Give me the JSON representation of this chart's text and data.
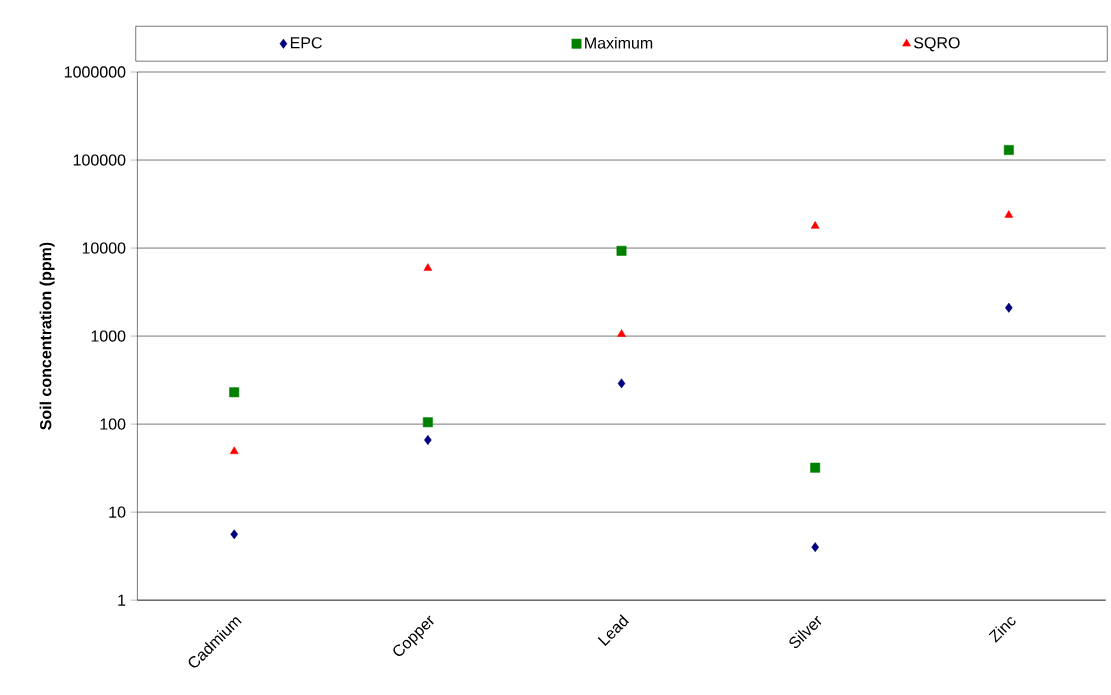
{
  "chart_data": {
    "type": "scatter",
    "ylabel": "Soil concentration (ppm)",
    "categories": [
      "Cadmium",
      "Copper",
      "Lead",
      "Silver",
      "Zinc"
    ],
    "series": [
      {
        "name": "EPC",
        "color": "#000080",
        "marker": "diamond",
        "values": [
          5.6,
          66,
          290,
          4.0,
          2100
        ]
      },
      {
        "name": "Maximum",
        "color": "#008000",
        "marker": "square",
        "values": [
          230,
          105,
          9300,
          32,
          130000
        ]
      },
      {
        "name": "SQRO",
        "color": "#ff0000",
        "marker": "triangle",
        "values": [
          49,
          5900,
          1050,
          17800,
          23700
        ]
      }
    ],
    "log": "y",
    "ylim": [
      1,
      1000000
    ],
    "yticks": [
      1,
      10,
      100,
      1000,
      10000,
      100000,
      1000000
    ],
    "grid": "y",
    "legend": "top"
  }
}
